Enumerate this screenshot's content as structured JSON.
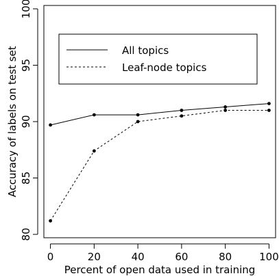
{
  "chart_data": {
    "type": "line",
    "title": "",
    "xlabel": "Percent of open data used in training",
    "ylabel": "Accuracy of labels on test set",
    "xlim": [
      -3,
      103
    ],
    "ylim": [
      79.7,
      100.3
    ],
    "x_ticks": [
      0,
      20,
      40,
      60,
      80,
      100
    ],
    "y_ticks": [
      80,
      85,
      90,
      95,
      100
    ],
    "grid": false,
    "legend_position": "top",
    "series": [
      {
        "name": "All topics",
        "line_style": "solid",
        "x": [
          0,
          20,
          40,
          60,
          80,
          100
        ],
        "y": [
          89.7,
          90.6,
          90.6,
          91.0,
          91.3,
          91.6
        ]
      },
      {
        "name": "Leaf-node topics",
        "line_style": "dashed",
        "x": [
          0,
          20,
          40,
          60,
          80,
          100
        ],
        "y": [
          81.2,
          87.4,
          90.0,
          90.5,
          91.0,
          91.0
        ]
      }
    ],
    "colors": {
      "line": "#000000",
      "axis": "#000000",
      "background": "#ffffff"
    }
  }
}
